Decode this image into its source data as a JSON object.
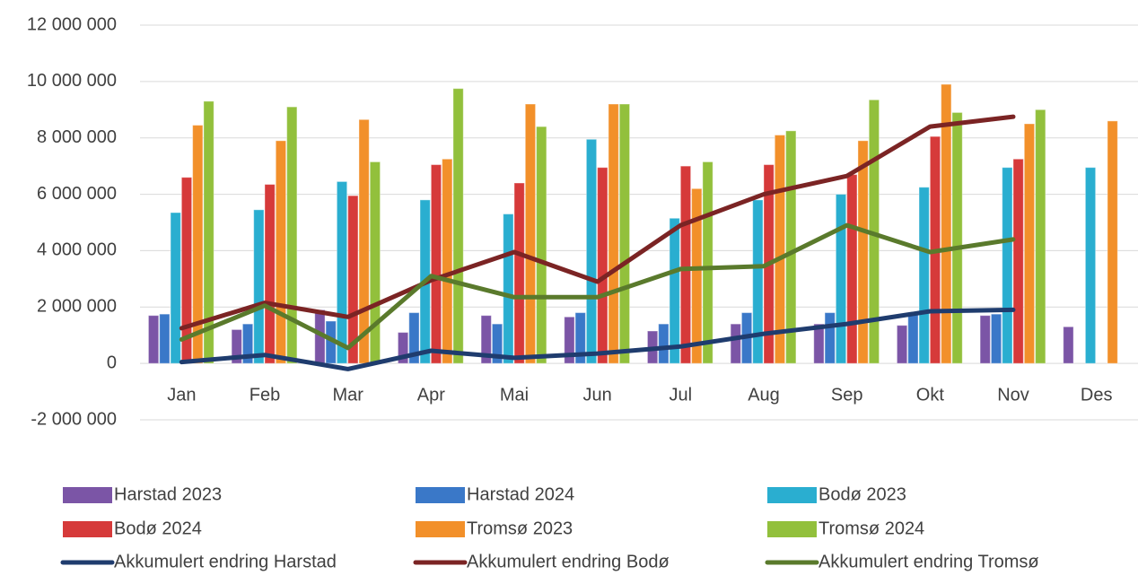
{
  "chart_data": {
    "type": "bar",
    "categories": [
      "Jan",
      "Feb",
      "Mar",
      "Apr",
      "Mai",
      "Jun",
      "Jul",
      "Aug",
      "Sep",
      "Okt",
      "Nov",
      "Des"
    ],
    "series": [
      {
        "name": "Harstad 2023",
        "type": "bar",
        "color": "#7b55a6",
        "values": [
          1700000,
          1200000,
          1900000,
          1100000,
          1700000,
          1650000,
          1150000,
          1400000,
          1400000,
          1350000,
          1700000,
          1300000
        ]
      },
      {
        "name": "Harstad 2024",
        "type": "bar",
        "color": "#3a78c8",
        "values": [
          1750000,
          1400000,
          1500000,
          1800000,
          1400000,
          1800000,
          1400000,
          1800000,
          1800000,
          1750000,
          1750000,
          null
        ]
      },
      {
        "name": "Bodø 2023",
        "type": "bar",
        "color": "#2aaed0",
        "values": [
          5350000,
          5450000,
          6450000,
          5800000,
          5300000,
          7950000,
          5150000,
          5800000,
          6000000,
          6250000,
          6950000,
          6950000
        ]
      },
      {
        "name": "Bodø 2024",
        "type": "bar",
        "color": "#d63a3a",
        "values": [
          6600000,
          6350000,
          5950000,
          7050000,
          6400000,
          6950000,
          7000000,
          7050000,
          6700000,
          8050000,
          7250000,
          null
        ]
      },
      {
        "name": "Tromsø 2023",
        "type": "bar",
        "color": "#f2902a",
        "values": [
          8450000,
          7900000,
          8650000,
          7250000,
          9200000,
          9200000,
          6200000,
          8100000,
          7900000,
          9900000,
          8500000,
          8600000
        ]
      },
      {
        "name": "Tromsø 2024",
        "type": "bar",
        "color": "#92c03c",
        "values": [
          9300000,
          9100000,
          7150000,
          9750000,
          8400000,
          9200000,
          7150000,
          8250000,
          9350000,
          8900000,
          9000000,
          null
        ]
      },
      {
        "name": "Akkumulert endring Harstad",
        "type": "line",
        "color": "#1f3c6e",
        "values": [
          50000,
          300000,
          -200000,
          450000,
          200000,
          350000,
          600000,
          1050000,
          1400000,
          1850000,
          1900000,
          null
        ]
      },
      {
        "name": "Akkumulert endring Bodø",
        "type": "line",
        "color": "#7b2424",
        "values": [
          1250000,
          2150000,
          1650000,
          2950000,
          3950000,
          2900000,
          4900000,
          6000000,
          6650000,
          8400000,
          8750000,
          null
        ]
      },
      {
        "name": "Akkumulert endring Tromsø",
        "type": "line",
        "color": "#5a7a2c",
        "values": [
          850000,
          2050000,
          550000,
          3100000,
          2350000,
          2350000,
          3350000,
          3450000,
          4900000,
          3950000,
          4400000,
          null
        ]
      }
    ],
    "ylim": [
      -2000000,
      12000000
    ],
    "yticks": [
      {
        "value": -2000000,
        "label": "-2 000 000"
      },
      0,
      {
        "value": 2000000,
        "label": "2 000 000"
      },
      {
        "value": 4000000,
        "label": "4 000 000"
      },
      {
        "value": 6000000,
        "label": "6 000 000"
      },
      {
        "value": 8000000,
        "label": "8 000 000"
      },
      {
        "value": 10000000,
        "label": "10 000 000"
      },
      {
        "value": 12000000,
        "label": "12 000 000"
      }
    ],
    "grid": true
  }
}
